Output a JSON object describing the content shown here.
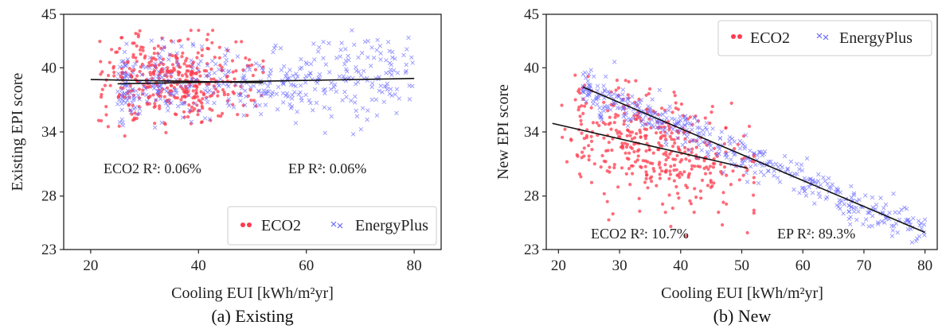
{
  "chart_data": [
    {
      "type": "scatter",
      "caption": "(a) Existing",
      "xlabel": "Cooling EUI [kWh/m²yr]",
      "ylabel": "Existing EPI score",
      "xlim": [
        15,
        85
      ],
      "ylim": [
        23,
        45
      ],
      "xticks": [
        "20",
        "40",
        "60",
        "80"
      ],
      "yticks": [
        "23",
        "28",
        "34",
        "40",
        "45"
      ],
      "ytick_values": [
        23,
        28,
        34,
        40,
        45
      ],
      "xtick_values": [
        20,
        40,
        60,
        80
      ],
      "legend": {
        "position": "bottom-right",
        "entries": [
          "ECO2",
          "EnergyPlus"
        ]
      },
      "annotations": [
        "ECO2 R²: 0.06%",
        "EP R²:  0.06%"
      ],
      "series": [
        {
          "name": "ECO2",
          "color": "#ff3b4e",
          "marker": "dot",
          "x_range": [
            20,
            52
          ],
          "trend": [
            [
              20,
              38.9
            ],
            [
              52,
              38.6
            ]
          ]
        },
        {
          "name": "EnergyPlus",
          "color": "#6a6aff",
          "marker": "x",
          "x_range": [
            25,
            80
          ],
          "trend": [
            [
              25,
              38.5
            ],
            [
              80,
              39.0
            ]
          ]
        }
      ]
    },
    {
      "type": "scatter",
      "caption": "(b) New",
      "xlabel": "Cooling EUI [kWh/m²yr]",
      "ylabel": "New EPI score",
      "xlim": [
        18,
        82
      ],
      "ylim": [
        23,
        45
      ],
      "xticks": [
        "20",
        "30",
        "40",
        "50",
        "60",
        "70",
        "80"
      ],
      "xtick_values": [
        20,
        30,
        40,
        50,
        60,
        70,
        80
      ],
      "yticks": [
        "23",
        "28",
        "34",
        "40",
        "45"
      ],
      "ytick_values": [
        23,
        28,
        34,
        40,
        45
      ],
      "legend": {
        "position": "top-right",
        "entries": [
          "ECO2",
          "EnergyPlus"
        ]
      },
      "annotations": [
        "ECO2 R²: 10.7%",
        "EP R²: 89.3%"
      ],
      "series": [
        {
          "name": "ECO2",
          "color": "#ff3b4e",
          "marker": "dot",
          "x_range": [
            20,
            52
          ],
          "trend": [
            [
              19,
              34.8
            ],
            [
              51,
              30.6
            ]
          ]
        },
        {
          "name": "EnergyPlus",
          "color": "#6a6aff",
          "marker": "x",
          "x_range": [
            24,
            80
          ],
          "trend": [
            [
              24,
              38.2
            ],
            [
              80,
              24.6
            ]
          ]
        }
      ]
    }
  ]
}
